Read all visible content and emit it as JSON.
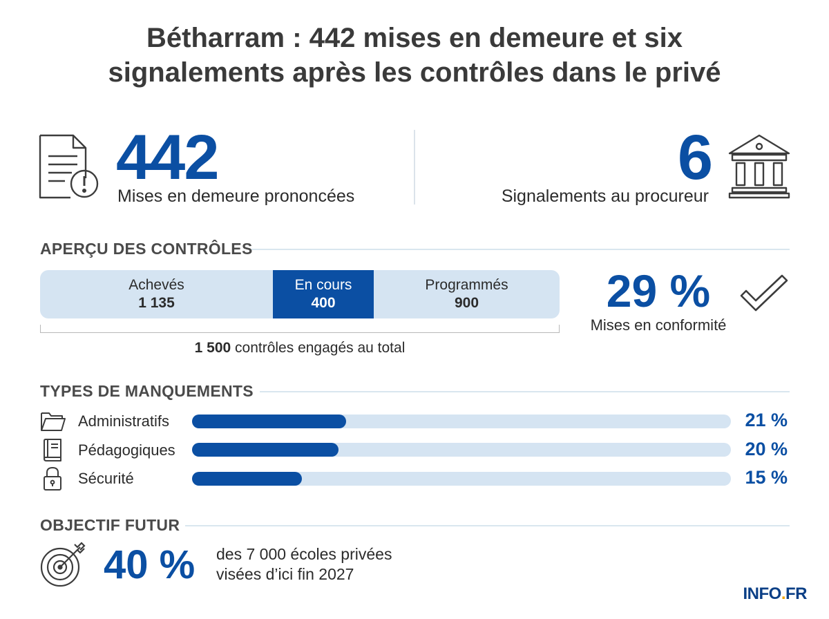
{
  "title_line1": "Bétharram : 442 mises en demeure et six",
  "title_line2": "signalements après les contrôles dans le privé",
  "stats": {
    "left": {
      "value": "442",
      "label": "Mises en demeure prononcées",
      "icon": "document-warning-icon"
    },
    "right": {
      "value": "6",
      "label": "Signalements au procureur",
      "icon": "courthouse-icon"
    }
  },
  "overview": {
    "heading": "APERÇU DES CONTRÔLES",
    "segments": [
      {
        "label": "Achevés",
        "value": "1 135"
      },
      {
        "label": "En cours",
        "value": "400"
      },
      {
        "label": "Programmés",
        "value": "900"
      }
    ],
    "total_value": "1 500",
    "total_text": " contrôles engagés au total",
    "compliance": {
      "value": "29 %",
      "label": "Mises en conformité",
      "icon": "checkmark-icon"
    }
  },
  "violations": {
    "heading": "TYPES DE MANQUEMENTS",
    "items": [
      {
        "label": "Administratifs",
        "percent": 21,
        "display": "21 %",
        "icon": "folder-icon"
      },
      {
        "label": "Pédagogiques",
        "percent": 20,
        "display": "20 %",
        "icon": "book-icon"
      },
      {
        "label": "Sécurité",
        "percent": 15,
        "display": "15 %",
        "icon": "padlock-icon"
      }
    ]
  },
  "goal": {
    "heading": "OBJECTIF FUTUR",
    "value": "40 %",
    "line1": "des 7 000 écoles privées",
    "line2": "visées d’ici fin 2027",
    "icon": "target-icon"
  },
  "logo": {
    "main": "INFO",
    "dot": ".",
    "suffix": "FR"
  },
  "colors": {
    "accent": "#0b4fa3",
    "track": "#d5e4f2",
    "logo_dot": "#f2a400"
  }
}
